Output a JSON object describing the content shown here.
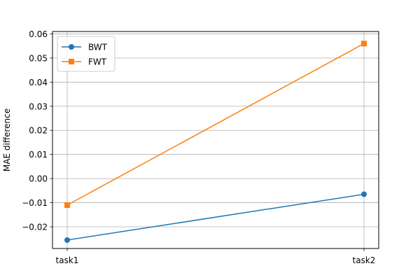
{
  "chart_data": {
    "type": "line",
    "title": "",
    "xlabel": "",
    "ylabel": "MAE difference",
    "categories": [
      "task1",
      "task2"
    ],
    "ylim": [
      -0.029,
      0.061
    ],
    "yticks": [
      -0.02,
      -0.01,
      0.0,
      0.01,
      0.02,
      0.03,
      0.04,
      0.05,
      0.06
    ],
    "ytick_labels": [
      "−0.02",
      "−0.01",
      "0.00",
      "0.01",
      "0.02",
      "0.03",
      "0.04",
      "0.05",
      "0.06"
    ],
    "grid": true,
    "legend_position": "upper-left",
    "series": [
      {
        "name": "BWT",
        "values": [
          -0.0255,
          -0.0065
        ],
        "color": "#1f77b4",
        "marker": "circle"
      },
      {
        "name": "FWT",
        "values": [
          -0.011,
          0.056
        ],
        "color": "#ff7f0e",
        "marker": "square"
      }
    ]
  }
}
